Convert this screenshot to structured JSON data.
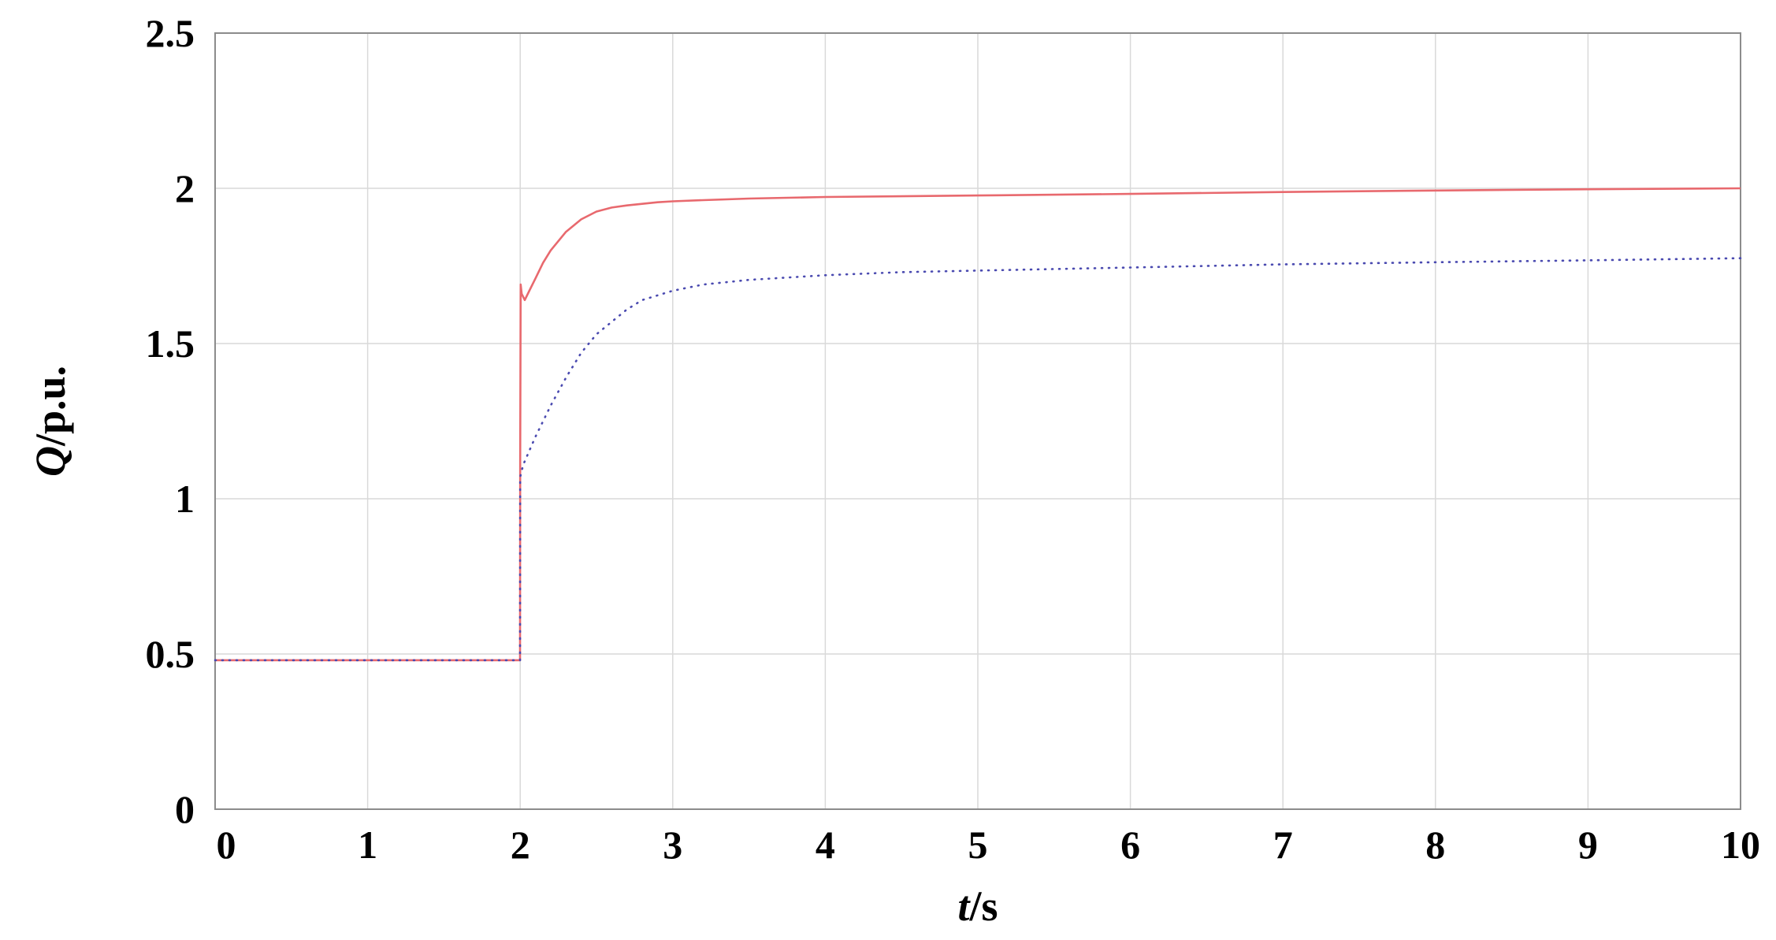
{
  "chart_data": {
    "type": "line",
    "title": "",
    "xlabel": {
      "italic": "t",
      "rest": "/s"
    },
    "ylabel": {
      "italic": "Q",
      "rest": "/p.u."
    },
    "xlim": [
      0,
      10
    ],
    "ylim": [
      0,
      2.5
    ],
    "xticks": [
      0,
      1,
      2,
      3,
      4,
      5,
      6,
      7,
      8,
      9,
      10
    ],
    "xtick_labels": [
      "0",
      "1",
      "2",
      "3",
      "4",
      "5",
      "6",
      "7",
      "8",
      "9",
      "10"
    ],
    "yticks": [
      0,
      0.5,
      1,
      1.5,
      2,
      2.5
    ],
    "ytick_labels": [
      "0",
      "0.5",
      "1",
      "1.5",
      "2",
      "2.5"
    ],
    "grid": true,
    "legend": "none",
    "series": [
      {
        "color": "#e8696e",
        "style": "solid",
        "x": [
          0,
          1.0,
          1.999,
          2.0,
          2.003,
          2.01,
          2.03,
          2.06,
          2.1,
          2.15,
          2.2,
          2.3,
          2.4,
          2.5,
          2.6,
          2.7,
          2.8,
          2.9,
          3.0,
          3.2,
          3.5,
          4.0,
          5.0,
          6.0,
          7.0,
          8.0,
          9.0,
          10.0
        ],
        "y": [
          0.48,
          0.48,
          0.48,
          1.12,
          1.69,
          1.66,
          1.64,
          1.67,
          1.71,
          1.76,
          1.8,
          1.86,
          1.9,
          1.925,
          1.938,
          1.945,
          1.95,
          1.955,
          1.958,
          1.962,
          1.967,
          1.972,
          1.977,
          1.982,
          1.988,
          1.993,
          1.997,
          2.0
        ]
      },
      {
        "color": "#4a4ab0",
        "style": "dotted",
        "x": [
          0,
          1.0,
          1.999,
          2.0,
          2.02,
          2.1,
          2.2,
          2.3,
          2.4,
          2.5,
          2.6,
          2.7,
          2.8,
          3.0,
          3.2,
          3.5,
          4.0,
          4.5,
          5.0,
          6.0,
          7.0,
          8.0,
          9.0,
          10.0
        ],
        "y": [
          0.48,
          0.48,
          0.48,
          1.07,
          1.11,
          1.2,
          1.3,
          1.39,
          1.47,
          1.53,
          1.57,
          1.61,
          1.64,
          1.67,
          1.69,
          1.705,
          1.72,
          1.73,
          1.735,
          1.745,
          1.755,
          1.762,
          1.768,
          1.775
        ]
      }
    ]
  }
}
